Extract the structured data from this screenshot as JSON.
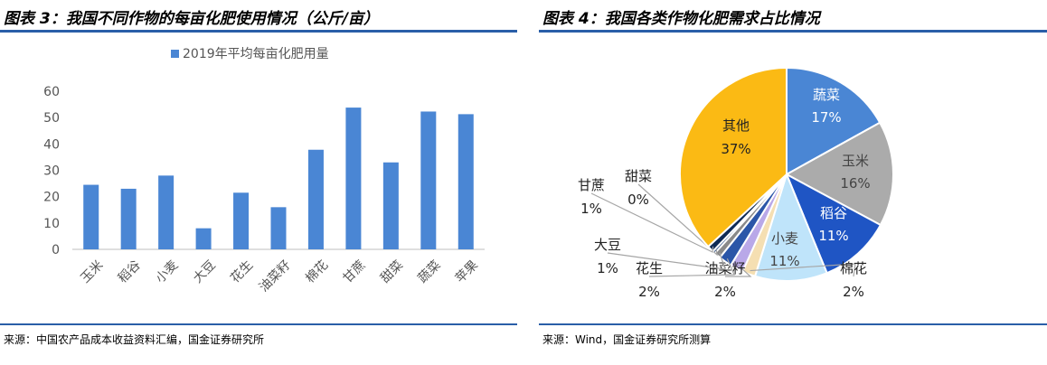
{
  "left": {
    "title": "图表 3：我国不同作物的每亩化肥使用情况（公斤/亩）",
    "source": "来源：中国农产品成本收益资料汇编，国金证券研究所",
    "colors": {
      "bar": "#4a86d4",
      "rule": "#2a5ea8"
    }
  },
  "right": {
    "title": "图表 4：我国各类作物化肥需求占比情况",
    "source": "来源：Wind，国金证券研究所测算"
  },
  "chart_data": [
    {
      "type": "bar",
      "categories": [
        "玉米",
        "稻谷",
        "小麦",
        "大豆",
        "花生",
        "油菜籽",
        "棉花",
        "甘蔗",
        "甜菜",
        "蔬菜",
        "苹果"
      ],
      "series": [
        {
          "name": "2019年平均每亩化肥用量",
          "values": [
            24.5,
            23,
            28,
            8,
            21.5,
            16,
            37.8,
            53.8,
            33,
            52.3,
            51.3
          ],
          "color": "#4a86d4"
        }
      ],
      "ylim": [
        0,
        60
      ],
      "yticks": [
        0,
        10,
        20,
        30,
        40,
        50,
        60
      ],
      "grid": false,
      "legend": "top"
    },
    {
      "type": "pie",
      "slices": [
        {
          "label": "蔬菜",
          "value": 17,
          "text": "17%",
          "color": "#4a86d4"
        },
        {
          "label": "玉米",
          "value": 16,
          "text": "16%",
          "color": "#ababab"
        },
        {
          "label": "稻谷",
          "value": 11,
          "text": "11%",
          "color": "#1f55c4"
        },
        {
          "label": "小麦",
          "value": 11,
          "text": "11%",
          "color": "#bfe4fa"
        },
        {
          "label": "棉花",
          "value": 2,
          "text": "2%",
          "color": "#f5dfb2"
        },
        {
          "label": "油菜籽",
          "value": 2,
          "text": "2%",
          "color": "#b9a8e8"
        },
        {
          "label": "花生",
          "value": 2,
          "text": "2%",
          "color": "#2b56a8"
        },
        {
          "label": "大豆",
          "value": 1,
          "text": "1%",
          "color": "#8a8a8a"
        },
        {
          "label": "甜菜",
          "value": 0.4,
          "text": "0%",
          "color": "#173d7a"
        },
        {
          "label": "甘蔗",
          "value": 1,
          "text": "1%",
          "color": "#0e2a55"
        },
        {
          "label": "其他",
          "value": 37,
          "text": "37%",
          "color": "#fbba14"
        }
      ]
    }
  ]
}
